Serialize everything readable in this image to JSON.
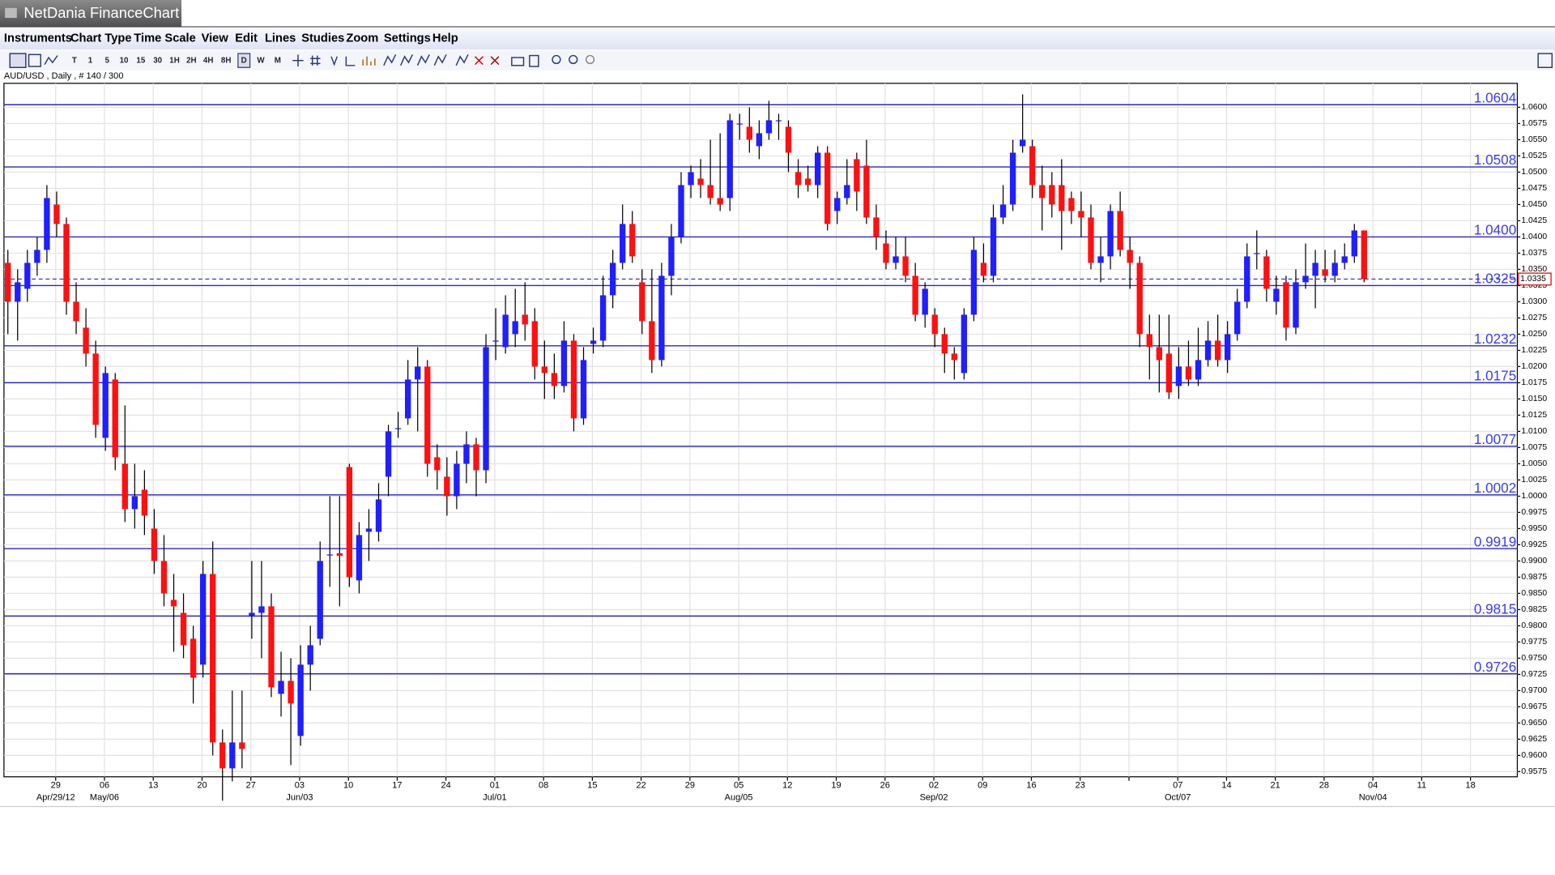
{
  "window_title": "NetDania FinanceChart",
  "menu": [
    "Instruments",
    "Chart Type",
    "Time Scale",
    "View",
    "Edit",
    "Lines",
    "Studies",
    "Zoom",
    "Settings",
    "Help"
  ],
  "toolbar": {
    "timescales": [
      "T",
      "1",
      "5",
      "10",
      "15",
      "30",
      "1H",
      "2H",
      "4H",
      "8H",
      "D",
      "W",
      "M"
    ]
  },
  "chart_data": {
    "type": "candlestick",
    "title": "AUD/USD , Daily , # 140 / 300",
    "up_color": "#1f1fff",
    "down_color": "#ff1010",
    "level_color": "#2828c8",
    "grid": true,
    "ylim": [
      0.9567,
      1.0637
    ],
    "xlim": [
      -0.4,
      154.7
    ],
    "yticks": [
      0.9575,
      {
        "value": 0.96,
        "label": "0.9600"
      },
      0.9625,
      {
        "value": 0.965,
        "label": "0.9650"
      },
      0.9675,
      {
        "value": 0.97,
        "label": "0.9700"
      },
      0.9725,
      {
        "value": 0.975,
        "label": "0.9750"
      },
      0.9775,
      {
        "value": 0.98,
        "label": "0.9800"
      },
      0.9825,
      {
        "value": 0.985,
        "label": "0.9850"
      },
      0.9875,
      {
        "value": 0.99,
        "label": "0.9900"
      },
      0.9925,
      {
        "value": 0.995,
        "label": "0.9950"
      },
      0.9975,
      {
        "value": 1,
        "label": "1.0000"
      },
      1.0025,
      {
        "value": 1.005,
        "label": "1.0050"
      },
      1.0075,
      {
        "value": 1.01,
        "label": "1.0100"
      },
      1.0125,
      {
        "value": 1.015,
        "label": "1.0150"
      },
      1.0175,
      {
        "value": 1.02,
        "label": "1.0200"
      },
      1.0225,
      {
        "value": 1.025,
        "label": "1.0250"
      },
      1.0275,
      {
        "value": 1.03,
        "label": "1.0300"
      },
      1.0325,
      {
        "value": 1.035,
        "label": "1.0350"
      },
      1.0375,
      {
        "value": 1.04,
        "label": "1.0400"
      },
      1.0425,
      {
        "value": 1.045,
        "label": "1.0450"
      },
      1.0475,
      {
        "value": 1.05,
        "label": "1.0500"
      },
      1.0525,
      {
        "value": 1.055,
        "label": "1.0550"
      },
      1.0575,
      {
        "value": 1.06,
        "label": "1.0600"
      }
    ],
    "xticks": [
      {
        "value": 4.9,
        "label": "29"
      },
      {
        "value": 9.9,
        "label": "06"
      },
      {
        "value": 14.9,
        "label": "13"
      },
      {
        "value": 19.9,
        "label": "20"
      },
      {
        "value": 24.9,
        "label": "27"
      },
      {
        "value": 29.9,
        "label": "03"
      },
      {
        "value": 34.9,
        "label": "10"
      },
      {
        "value": 39.9,
        "label": "17"
      },
      {
        "value": 44.9,
        "label": "24"
      },
      {
        "value": 49.9,
        "label": "01"
      },
      {
        "value": 54.9,
        "label": "08"
      },
      {
        "value": 59.9,
        "label": "15"
      },
      {
        "value": 64.9,
        "label": "22"
      },
      {
        "value": 69.9,
        "label": "29"
      },
      {
        "value": 74.9,
        "label": "05"
      },
      {
        "value": 79.9,
        "label": "12"
      },
      {
        "value": 84.9,
        "label": "19"
      },
      {
        "value": 89.9,
        "label": "26"
      },
      {
        "value": 94.9,
        "label": "02"
      },
      {
        "value": 99.9,
        "label": "09"
      },
      {
        "value": 104.9,
        "label": "16"
      },
      {
        "value": 109.9,
        "label": "23"
      },
      {
        "value": 114.9,
        "label": null
      },
      {
        "value": 119.9,
        "label": "07"
      },
      {
        "value": 124.9,
        "label": "14"
      },
      {
        "value": 129.9,
        "label": "21"
      },
      {
        "value": 134.9,
        "label": "28"
      },
      {
        "value": 139.9,
        "label": "04"
      },
      {
        "value": 144.9,
        "label": "11"
      },
      {
        "value": 149.9,
        "label": "18"
      }
    ],
    "month_labels": [
      {
        "value": 4.9,
        "label": "Apr/29/12"
      },
      {
        "value": 9.9,
        "label": "May/06"
      },
      {
        "value": 29.9,
        "label": "Jun/03"
      },
      {
        "value": 49.9,
        "label": "Jul/01"
      },
      {
        "value": 74.9,
        "label": "Aug/05"
      },
      {
        "value": 94.9,
        "label": "Sep/02"
      },
      {
        "value": 119.9,
        "label": "Oct/07"
      },
      {
        "value": 139.9,
        "label": "Nov/04"
      }
    ],
    "levels": [
      1.0604,
      1.0508,
      {
        "value": 1.04,
        "label": "1.0400"
      },
      1.0325,
      1.0232,
      1.0175,
      1.0077,
      1.0002,
      0.9919,
      0.9815,
      0.9726
    ],
    "last_price": 1.0335,
    "ohlc": [
      [
        1.036,
        1.038,
        1.025,
        1.03
      ],
      [
        1.03,
        1.035,
        1.024,
        1.033
      ],
      [
        1.032,
        1.038,
        1.03,
        1.036
      ],
      [
        1.036,
        1.04,
        1.034,
        1.038
      ],
      [
        1.038,
        1.048,
        1.036,
        1.046
      ],
      [
        1.045,
        1.047,
        1.04,
        1.042
      ],
      [
        1.042,
        1.043,
        1.028,
        1.03
      ],
      [
        1.03,
        1.033,
        1.025,
        1.027
      ],
      [
        1.026,
        1.029,
        1.02,
        1.022
      ],
      [
        1.022,
        1.024,
        1.009,
        1.011
      ],
      [
        1.009,
        1.02,
        1.007,
        1.019
      ],
      [
        1.018,
        1.019,
        1.004,
        1.006
      ],
      [
        1.005,
        1.014,
        0.996,
        0.998
      ],
      [
        0.998,
        1.005,
        0.995,
        1.0
      ],
      [
        1.001,
        1.004,
        0.994,
        0.997
      ],
      [
        0.995,
        0.998,
        0.988,
        0.99
      ],
      [
        0.99,
        0.994,
        0.983,
        0.985
      ],
      [
        0.984,
        0.988,
        0.976,
        0.983
      ],
      [
        0.982,
        0.985,
        0.975,
        0.977
      ],
      [
        0.978,
        0.98,
        0.968,
        0.972
      ],
      [
        0.974,
        0.99,
        0.972,
        0.988
      ],
      [
        0.988,
        0.993,
        0.96,
        0.962
      ],
      [
        0.962,
        0.964,
        0.953,
        0.958
      ],
      [
        0.958,
        0.97,
        0.956,
        0.962
      ],
      [
        0.962,
        0.97,
        0.958,
        0.961
      ],
      [
        0.9815,
        0.99,
        0.978,
        0.982
      ],
      [
        0.982,
        0.99,
        0.975,
        0.983
      ],
      [
        0.983,
        0.985,
        0.969,
        0.9705
      ],
      [
        0.9695,
        0.976,
        0.966,
        0.9715
      ],
      [
        0.9715,
        0.975,
        0.9585,
        0.968
      ],
      [
        0.963,
        0.977,
        0.9615,
        0.974
      ],
      [
        0.974,
        0.98,
        0.97,
        0.977
      ],
      [
        0.978,
        0.993,
        0.977,
        0.99
      ],
      [
        0.991,
        1.0,
        0.986,
        0.991
      ],
      [
        0.9912,
        1.0,
        0.983,
        0.9908
      ],
      [
        1.0045,
        1.005,
        0.986,
        0.9875
      ],
      [
        0.987,
        0.996,
        0.985,
        0.994
      ],
      [
        0.9945,
        0.998,
        0.99,
        0.995
      ],
      [
        0.9945,
        1.002,
        0.993,
        0.9995
      ],
      [
        1.003,
        1.011,
        1.0,
        1.01
      ],
      [
        1.0105,
        1.013,
        1.009,
        1.0105
      ],
      [
        1.012,
        1.021,
        1.011,
        1.018
      ],
      [
        1.018,
        1.023,
        1.01,
        1.02
      ],
      [
        1.02,
        1.021,
        1.003,
        1.005
      ],
      [
        1.006,
        1.008,
        1.001,
        1.004
      ],
      [
        1.003,
        1.006,
        0.997,
        1.0
      ],
      [
        1.0,
        1.007,
        0.998,
        1.005
      ],
      [
        1.005,
        1.01,
        1.002,
        1.008
      ],
      [
        1.008,
        1.009,
        1.0,
        1.004
      ],
      [
        1.004,
        1.025,
        1.002,
        1.023
      ],
      [
        1.024,
        1.029,
        1.021,
        1.024
      ],
      [
        1.023,
        1.031,
        1.022,
        1.028
      ],
      [
        1.025,
        1.032,
        1.023,
        1.027
      ],
      [
        1.028,
        1.033,
        1.024,
        1.0265
      ],
      [
        1.027,
        1.029,
        1.018,
        1.02
      ],
      [
        1.02,
        1.024,
        1.015,
        1.019
      ],
      [
        1.019,
        1.022,
        1.015,
        1.017
      ],
      [
        1.017,
        1.027,
        1.016,
        1.024
      ],
      [
        1.024,
        1.025,
        1.01,
        1.012
      ],
      [
        1.012,
        1.023,
        1.011,
        1.021
      ],
      [
        1.0235,
        1.026,
        1.022,
        1.024
      ],
      [
        1.024,
        1.034,
        1.023,
        1.031
      ],
      [
        1.031,
        1.038,
        1.029,
        1.036
      ],
      [
        1.036,
        1.045,
        1.035,
        1.042
      ],
      [
        1.042,
        1.044,
        1.036,
        1.037
      ],
      [
        1.033,
        1.035,
        1.025,
        1.027
      ],
      [
        1.027,
        1.035,
        1.019,
        1.021
      ],
      [
        1.021,
        1.036,
        1.02,
        1.034
      ],
      [
        1.034,
        1.042,
        1.031,
        1.04
      ],
      [
        1.04,
        1.05,
        1.039,
        1.048
      ],
      [
        1.048,
        1.051,
        1.046,
        1.05
      ],
      [
        1.049,
        1.052,
        1.046,
        1.048
      ],
      [
        1.048,
        1.055,
        1.045,
        1.046
      ],
      [
        1.046,
        1.056,
        1.044,
        1.045
      ],
      [
        1.046,
        1.059,
        1.044,
        1.058
      ],
      [
        1.0575,
        1.059,
        1.055,
        1.0575
      ],
      [
        1.057,
        1.06,
        1.053,
        1.055
      ],
      [
        1.054,
        1.058,
        1.052,
        1.056
      ],
      [
        1.056,
        1.061,
        1.055,
        1.058
      ],
      [
        1.058,
        1.059,
        1.055,
        1.058
      ],
      [
        1.057,
        1.058,
        1.05,
        1.053
      ],
      [
        1.05,
        1.052,
        1.046,
        1.048
      ],
      [
        1.049,
        1.051,
        1.047,
        1.048
      ],
      [
        1.048,
        1.054,
        1.046,
        1.053
      ],
      [
        1.053,
        1.054,
        1.041,
        1.042
      ],
      [
        1.044,
        1.047,
        1.042,
        1.046
      ],
      [
        1.046,
        1.052,
        1.045,
        1.048
      ],
      [
        1.052,
        1.053,
        1.044,
        1.047
      ],
      [
        1.051,
        1.055,
        1.042,
        1.043
      ],
      [
        1.043,
        1.045,
        1.038,
        1.04
      ],
      [
        1.039,
        1.041,
        1.035,
        1.036
      ],
      [
        1.036,
        1.04,
        1.035,
        1.037
      ],
      [
        1.037,
        1.04,
        1.033,
        1.034
      ],
      [
        1.034,
        1.036,
        1.027,
        1.028
      ],
      [
        1.028,
        1.033,
        1.026,
        1.032
      ],
      [
        1.028,
        1.029,
        1.023,
        1.025
      ],
      [
        1.025,
        1.026,
        1.019,
        1.022
      ],
      [
        1.022,
        1.023,
        1.018,
        1.021
      ],
      [
        1.019,
        1.029,
        1.018,
        1.028
      ],
      [
        1.028,
        1.04,
        1.027,
        1.038
      ],
      [
        1.036,
        1.039,
        1.033,
        1.034
      ],
      [
        1.034,
        1.045,
        1.033,
        1.043
      ],
      [
        1.043,
        1.048,
        1.042,
        1.045
      ],
      [
        1.045,
        1.055,
        1.044,
        1.053
      ],
      [
        1.054,
        1.062,
        1.053,
        1.055
      ],
      [
        1.054,
        1.055,
        1.046,
        1.048
      ],
      [
        1.048,
        1.051,
        1.041,
        1.046
      ],
      [
        1.048,
        1.05,
        1.043,
        1.045
      ],
      [
        1.048,
        1.052,
        1.038,
        1.044
      ],
      [
        1.046,
        1.047,
        1.042,
        1.044
      ],
      [
        1.044,
        1.047,
        1.04,
        1.043
      ],
      [
        1.043,
        1.045,
        1.035,
        1.036
      ],
      [
        1.036,
        1.04,
        1.033,
        1.037
      ],
      [
        1.037,
        1.045,
        1.035,
        1.044
      ],
      [
        1.044,
        1.047,
        1.037,
        1.038
      ],
      [
        1.038,
        1.04,
        1.032,
        1.036
      ],
      [
        1.036,
        1.037,
        1.023,
        1.025
      ],
      [
        1.025,
        1.028,
        1.018,
        1.023
      ],
      [
        1.023,
        1.028,
        1.016,
        1.021
      ],
      [
        1.022,
        1.028,
        1.015,
        1.016
      ],
      [
        1.017,
        1.023,
        1.015,
        1.02
      ],
      [
        1.02,
        1.024,
        1.017,
        1.018
      ],
      [
        1.018,
        1.026,
        1.017,
        1.021
      ],
      [
        1.021,
        1.027,
        1.02,
        1.024
      ],
      [
        1.024,
        1.028,
        1.02,
        1.021
      ],
      [
        1.021,
        1.027,
        1.019,
        1.025
      ],
      [
        1.025,
        1.032,
        1.024,
        1.03
      ],
      [
        1.03,
        1.039,
        1.029,
        1.037
      ],
      [
        1.0375,
        1.041,
        1.035,
        1.0375
      ],
      [
        1.037,
        1.038,
        1.03,
        1.032
      ],
      [
        1.03,
        1.034,
        1.028,
        1.032
      ],
      [
        1.033,
        1.034,
        1.024,
        1.026
      ],
      [
        1.026,
        1.035,
        1.025,
        1.033
      ],
      [
        1.033,
        1.039,
        1.032,
        1.034
      ],
      [
        1.034,
        1.038,
        1.029,
        1.036
      ],
      [
        1.035,
        1.038,
        1.033,
        1.034
      ],
      [
        1.034,
        1.038,
        1.033,
        1.036
      ],
      [
        1.036,
        1.039,
        1.035,
        1.037
      ],
      [
        1.037,
        1.042,
        1.036,
        1.041
      ],
      [
        1.041,
        1.041,
        1.033,
        1.0335
      ]
    ]
  }
}
